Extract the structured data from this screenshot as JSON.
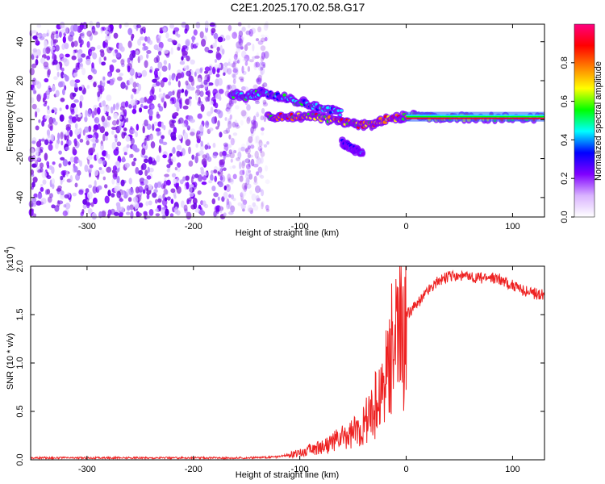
{
  "title": "C2E1.2025.170.02.58.G17",
  "chart_data": [
    {
      "type": "heatmap",
      "xlabel": "Height of straight line (km)",
      "ylabel": "Frequency (Hz)",
      "xlim": [
        -353,
        130
      ],
      "ylim": [
        -50,
        49
      ],
      "xticks": [
        -300,
        -200,
        -100,
        0,
        100
      ],
      "yticks": [
        -40,
        -20,
        0,
        20,
        40
      ],
      "colorbar": {
        "label": "Normalized spectral amplitude",
        "range": [
          0,
          1
        ],
        "ticks": [
          0.0,
          0.2,
          0.4,
          0.6,
          0.8
        ],
        "colormap": [
          "#ffffff",
          "#d9b3ff",
          "#8000ff",
          "#0000ff",
          "#00ffff",
          "#00ff00",
          "#ffff00",
          "#ff8000",
          "#ff0000",
          "#ff0080"
        ]
      },
      "features": [
        {
          "name": "noise",
          "x": [
            -353,
            -130
          ],
          "y": [
            -50,
            49
          ],
          "amplitude": 0.2
        },
        {
          "name": "upper-branch",
          "points": [
            [
              -165,
              13
            ],
            [
              -150,
              12
            ],
            [
              -135,
              14
            ],
            [
              -120,
              12
            ],
            [
              -100,
              9
            ],
            [
              -80,
              6
            ],
            [
              -60,
              3
            ]
          ],
          "amplitude": 0.55
        },
        {
          "name": "main-branch",
          "points": [
            [
              -130,
              2
            ],
            [
              -110,
              1
            ],
            [
              -90,
              2
            ],
            [
              -70,
              0
            ],
            [
              -50,
              -2
            ],
            [
              -35,
              -3
            ],
            [
              -20,
              0
            ],
            [
              0,
              2
            ],
            [
              30,
              1
            ],
            [
              70,
              1
            ],
            [
              130,
              1
            ]
          ],
          "amplitude": 0.9
        },
        {
          "name": "lower-branch",
          "points": [
            [
              -60,
              -12
            ],
            [
              -50,
              -15
            ],
            [
              -40,
              -18
            ]
          ],
          "amplitude": 0.4
        }
      ]
    },
    {
      "type": "line",
      "xlabel": "Height of straight line (km)",
      "ylabel": "SNR (10 * v/v)",
      "scale_label": "(x10",
      "scale_exponent": "4",
      "xlim": [
        -353,
        130
      ],
      "ylim": [
        0,
        2.0
      ],
      "xticks": [
        -300,
        -200,
        -100,
        0,
        100
      ],
      "yticks": [
        "0.0",
        "0.5",
        "1.0",
        "1.5",
        "2.0"
      ],
      "series_color": "#ee2222",
      "x": [
        -353,
        -300,
        -250,
        -200,
        -150,
        -120,
        -100,
        -90,
        -80,
        -70,
        -60,
        -50,
        -40,
        -30,
        -20,
        -15,
        -10,
        0,
        10,
        20,
        30,
        40,
        50,
        60,
        70,
        80,
        90,
        100,
        110,
        120,
        130
      ],
      "y": [
        0.02,
        0.02,
        0.02,
        0.02,
        0.02,
        0.03,
        0.08,
        0.12,
        0.15,
        0.2,
        0.25,
        0.3,
        0.4,
        0.6,
        0.9,
        1.3,
        1.4,
        1.5,
        1.6,
        1.75,
        1.85,
        1.9,
        1.9,
        1.88,
        1.88,
        1.88,
        1.86,
        1.8,
        1.75,
        1.72,
        1.7
      ]
    }
  ]
}
